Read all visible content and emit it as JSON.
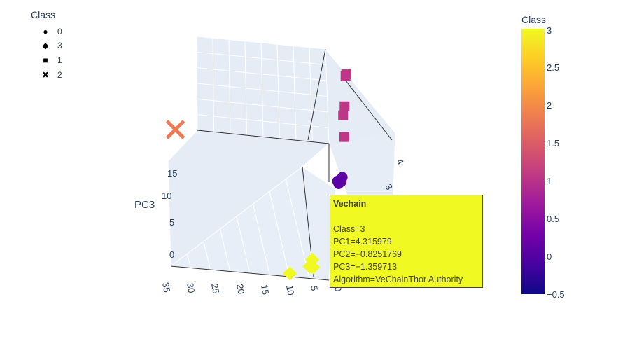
{
  "legend": {
    "title": "Class",
    "items": [
      {
        "symbol": "●",
        "label": "0"
      },
      {
        "symbol": "◆",
        "label": "3"
      },
      {
        "symbol": "■",
        "label": "1"
      },
      {
        "symbol": "✖",
        "label": "2"
      }
    ]
  },
  "colorbar": {
    "title": "Class",
    "ticks": [
      "3",
      "2.5",
      "2",
      "1.5",
      "1",
      "0.5",
      "0",
      "−0.5"
    ],
    "range": [
      -0.5,
      3
    ],
    "colorscale": "plasma"
  },
  "axes": {
    "z_label": "PC3",
    "z_ticks": [
      "15",
      "10",
      "5",
      "0"
    ],
    "x_ticks": [
      "35",
      "30",
      "25",
      "20",
      "15",
      "10",
      "5",
      "0"
    ],
    "y_ticks": [
      "4",
      "3"
    ]
  },
  "hover": {
    "name": "Vechain",
    "lines": [
      "Class=3",
      "PC1=4.315979",
      "PC2=−0.8251769",
      "PC3=−1.359713",
      "Algorithm=VeChainThor Authority"
    ]
  },
  "chart_data": {
    "type": "scatter",
    "title": "",
    "dimensions": [
      "PC1",
      "PC2",
      "PC3"
    ],
    "color_by": "Class",
    "series": [
      {
        "name": "0",
        "symbol": "circle",
        "color": "#5c01a6",
        "points": [
          {
            "PC1": 1.2,
            "PC2": 3.0,
            "PC3": 7.5
          },
          {
            "PC1": 1.0,
            "PC2": 3.1,
            "PC3": 7.4
          },
          {
            "PC1": 0.8,
            "PC2": 3.2,
            "PC3": 7.6
          },
          {
            "PC1": 0.6,
            "PC2": 3.3,
            "PC3": 7.3
          },
          {
            "PC1": 0.4,
            "PC2": 3.4,
            "PC3": 7.8
          },
          {
            "PC1": 0.9,
            "PC2": 2.9,
            "PC3": 7.2
          }
        ]
      },
      {
        "name": "3",
        "symbol": "diamond",
        "color": "#f0f921",
        "points": [
          {
            "PC1": 4.315979,
            "PC2": -0.8251769,
            "PC3": -1.359713
          },
          {
            "PC1": 4.6,
            "PC2": -0.6,
            "PC3": -0.5
          },
          {
            "PC1": 5.0,
            "PC2": -0.9,
            "PC3": -1.2
          },
          {
            "PC1": 9.0,
            "PC2": -1.1,
            "PC3": -1.8
          }
        ]
      },
      {
        "name": "1",
        "symbol": "square",
        "color": "#bd3786",
        "points": [
          {
            "PC1": 0.2,
            "PC2": 4.3,
            "PC3": 19.5
          },
          {
            "PC1": 0.1,
            "PC2": 4.4,
            "PC3": 19.7
          },
          {
            "PC1": 0.3,
            "PC2": 4.1,
            "PC3": 16.0
          },
          {
            "PC1": 0.5,
            "PC2": 3.9,
            "PC3": 15.0
          },
          {
            "PC1": 0.1,
            "PC2": 3.6,
            "PC3": 12.5
          }
        ]
      },
      {
        "name": "2",
        "symbol": "x",
        "color": "#ed7953",
        "points": [
          {
            "PC1": 34.0,
            "PC2": 1.5,
            "PC3": 15.5
          }
        ]
      }
    ],
    "x_range": [
      0,
      35
    ],
    "z_range": [
      -1,
      17
    ]
  },
  "colors": {
    "grid_bg": "#e5ecf6",
    "axis_text": "#2a3f5f"
  }
}
